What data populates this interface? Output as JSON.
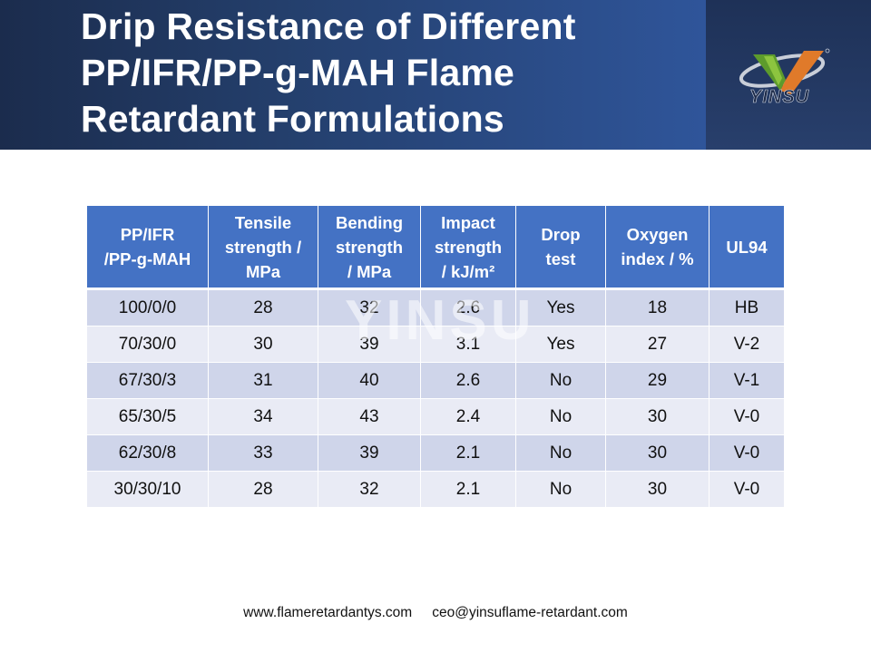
{
  "title_lines": [
    "Drip Resistance of Different",
    "PP/IFR/PP-g-MAH Flame",
    "Retardant Formulations"
  ],
  "logo_text": "YINSU",
  "watermark": "YINSU",
  "colors": {
    "header_dark": "#1b2c4d",
    "header_light": "#2f559a",
    "table_header": "#4472c4",
    "row_band_dark": "#cfd5ea",
    "row_band_light": "#e9ebf5"
  },
  "table": {
    "headers": [
      [
        "PP/IFR",
        "/PP-g-MAH"
      ],
      [
        "Tensile",
        "strength /",
        "MPa"
      ],
      [
        "Bending",
        "strength",
        "/ MPa"
      ],
      [
        "Impact",
        "strength",
        "/ kJ/m²"
      ],
      [
        "Drop",
        "test"
      ],
      [
        "Oxygen",
        "index / %"
      ],
      [
        "UL94"
      ]
    ],
    "rows": [
      [
        "100/0/0",
        "28",
        "32",
        "2.6",
        "Yes",
        "18",
        "HB"
      ],
      [
        "70/30/0",
        "30",
        "39",
        "3.1",
        "Yes",
        "27",
        "V-2"
      ],
      [
        "67/30/3",
        "31",
        "40",
        "2.6",
        "No",
        "29",
        "V-1"
      ],
      [
        "65/30/5",
        "34",
        "43",
        "2.4",
        "No",
        "30",
        "V-0"
      ],
      [
        "62/30/8",
        "33",
        "39",
        "2.1",
        "No",
        "30",
        "V-0"
      ],
      [
        "30/30/10",
        "28",
        "32",
        "2.1",
        "No",
        "30",
        "V-0"
      ]
    ]
  },
  "footer": {
    "website": "www.flameretardantys.com",
    "email": "ceo@yinsuflame-retardant.com"
  }
}
